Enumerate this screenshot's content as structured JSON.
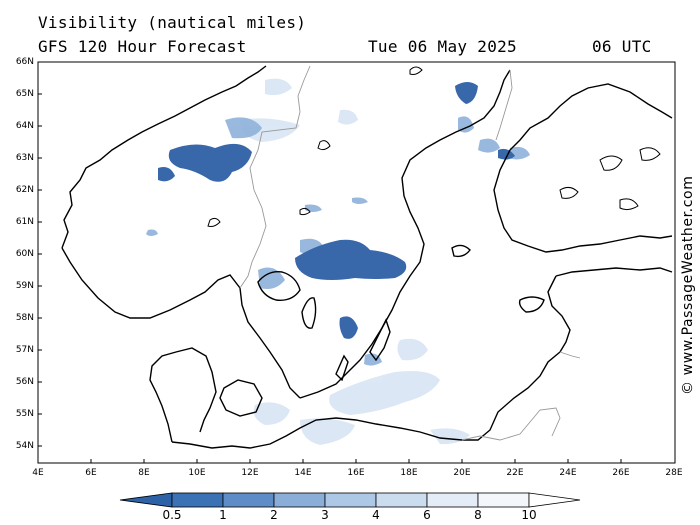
{
  "header": {
    "title": "Visibility (nautical miles)",
    "subtitle": "GFS 120 Hour Forecast",
    "date": "Tue 06 May 2025",
    "time": "06 UTC"
  },
  "credit": "© www.PassageWeather.com",
  "axes": {
    "latitude_labels": [
      "66N",
      "65N",
      "64N",
      "63N",
      "62N",
      "61N",
      "60N",
      "59N",
      "58N",
      "57N",
      "56N",
      "55N",
      "54N"
    ],
    "longitude_labels": [
      "4E",
      "6E",
      "8E",
      "10E",
      "12E",
      "14E",
      "16E",
      "18E",
      "20E",
      "22E",
      "24E",
      "26E",
      "28E"
    ]
  },
  "legend": {
    "values": [
      "0.5",
      "1",
      "2",
      "3",
      "4",
      "6",
      "8",
      "10"
    ],
    "colors": [
      "#2e62a8",
      "#3b72b6",
      "#5e8cc6",
      "#8aaed8",
      "#adc8e6",
      "#cbdcef",
      "#e3ecf7",
      "#f3f7fc",
      "#ffffff"
    ]
  },
  "colors": {
    "low_visibility": "#3868aa",
    "moderate_visibility": "#8fb1da",
    "light_visibility": "#d3e2f3",
    "land": "#ffffff",
    "coastline": "#000000",
    "border": "#999999"
  }
}
